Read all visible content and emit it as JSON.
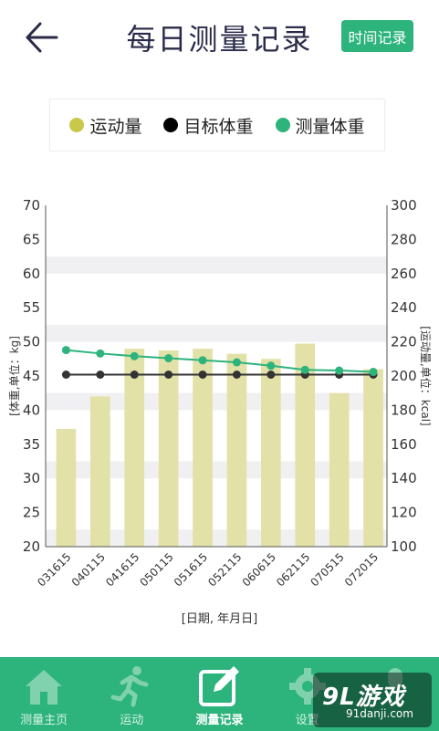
{
  "header": {
    "title": "每日测量记录",
    "time_button": "时间记录"
  },
  "legend": [
    {
      "label": "运动量",
      "color": "#c9c84a"
    },
    {
      "label": "目标体重",
      "color": "#000000"
    },
    {
      "label": "测量体重",
      "color": "#2db37c"
    }
  ],
  "chart_data": {
    "type": "bar",
    "categories": [
      "031615",
      "040115",
      "041615",
      "050115",
      "051615",
      "052115",
      "060615",
      "062115",
      "070515",
      "072015"
    ],
    "series": [
      {
        "name": "运动量",
        "type": "bar",
        "axis": "right",
        "color": "#e2e1a8",
        "values": [
          169,
          188,
          216,
          215,
          216,
          213,
          210,
          219,
          190,
          204
        ]
      },
      {
        "name": "目标体重",
        "type": "line",
        "axis": "left",
        "color": "#333333",
        "values": [
          45.2,
          45.2,
          45.2,
          45.2,
          45.2,
          45.2,
          45.2,
          45.2,
          45.2,
          45.2
        ]
      },
      {
        "name": "测量体重",
        "type": "line",
        "axis": "left",
        "color": "#2db37c",
        "values": [
          48.8,
          48.3,
          47.9,
          47.6,
          47.3,
          47.0,
          46.5,
          45.9,
          45.8,
          45.6
        ]
      }
    ],
    "ylabel_left": "[体重,单位：kg]",
    "ylabel_right": "[运动量,单位：kcal]",
    "xlabel": "[日期, 年月日]",
    "ylim_left": [
      20,
      70
    ],
    "ylim_right": [
      100,
      300
    ],
    "yticks_left": [
      20,
      25,
      30,
      35,
      40,
      45,
      50,
      55,
      60,
      65,
      70
    ],
    "yticks_right": [
      100,
      120,
      140,
      160,
      180,
      200,
      220,
      240,
      260,
      280,
      300
    ],
    "grid_bands": true
  },
  "tabs": [
    {
      "label": "测量主页",
      "icon": "home-icon"
    },
    {
      "label": "运动",
      "icon": "running-icon"
    },
    {
      "label": "测量记录",
      "icon": "edit-record-icon",
      "active": true
    },
    {
      "label": "设置",
      "icon": "gear-icon"
    },
    {
      "label": "",
      "icon": "user-icon"
    }
  ],
  "watermark": {
    "main": "9L游戏",
    "sub": "91danji.com"
  }
}
